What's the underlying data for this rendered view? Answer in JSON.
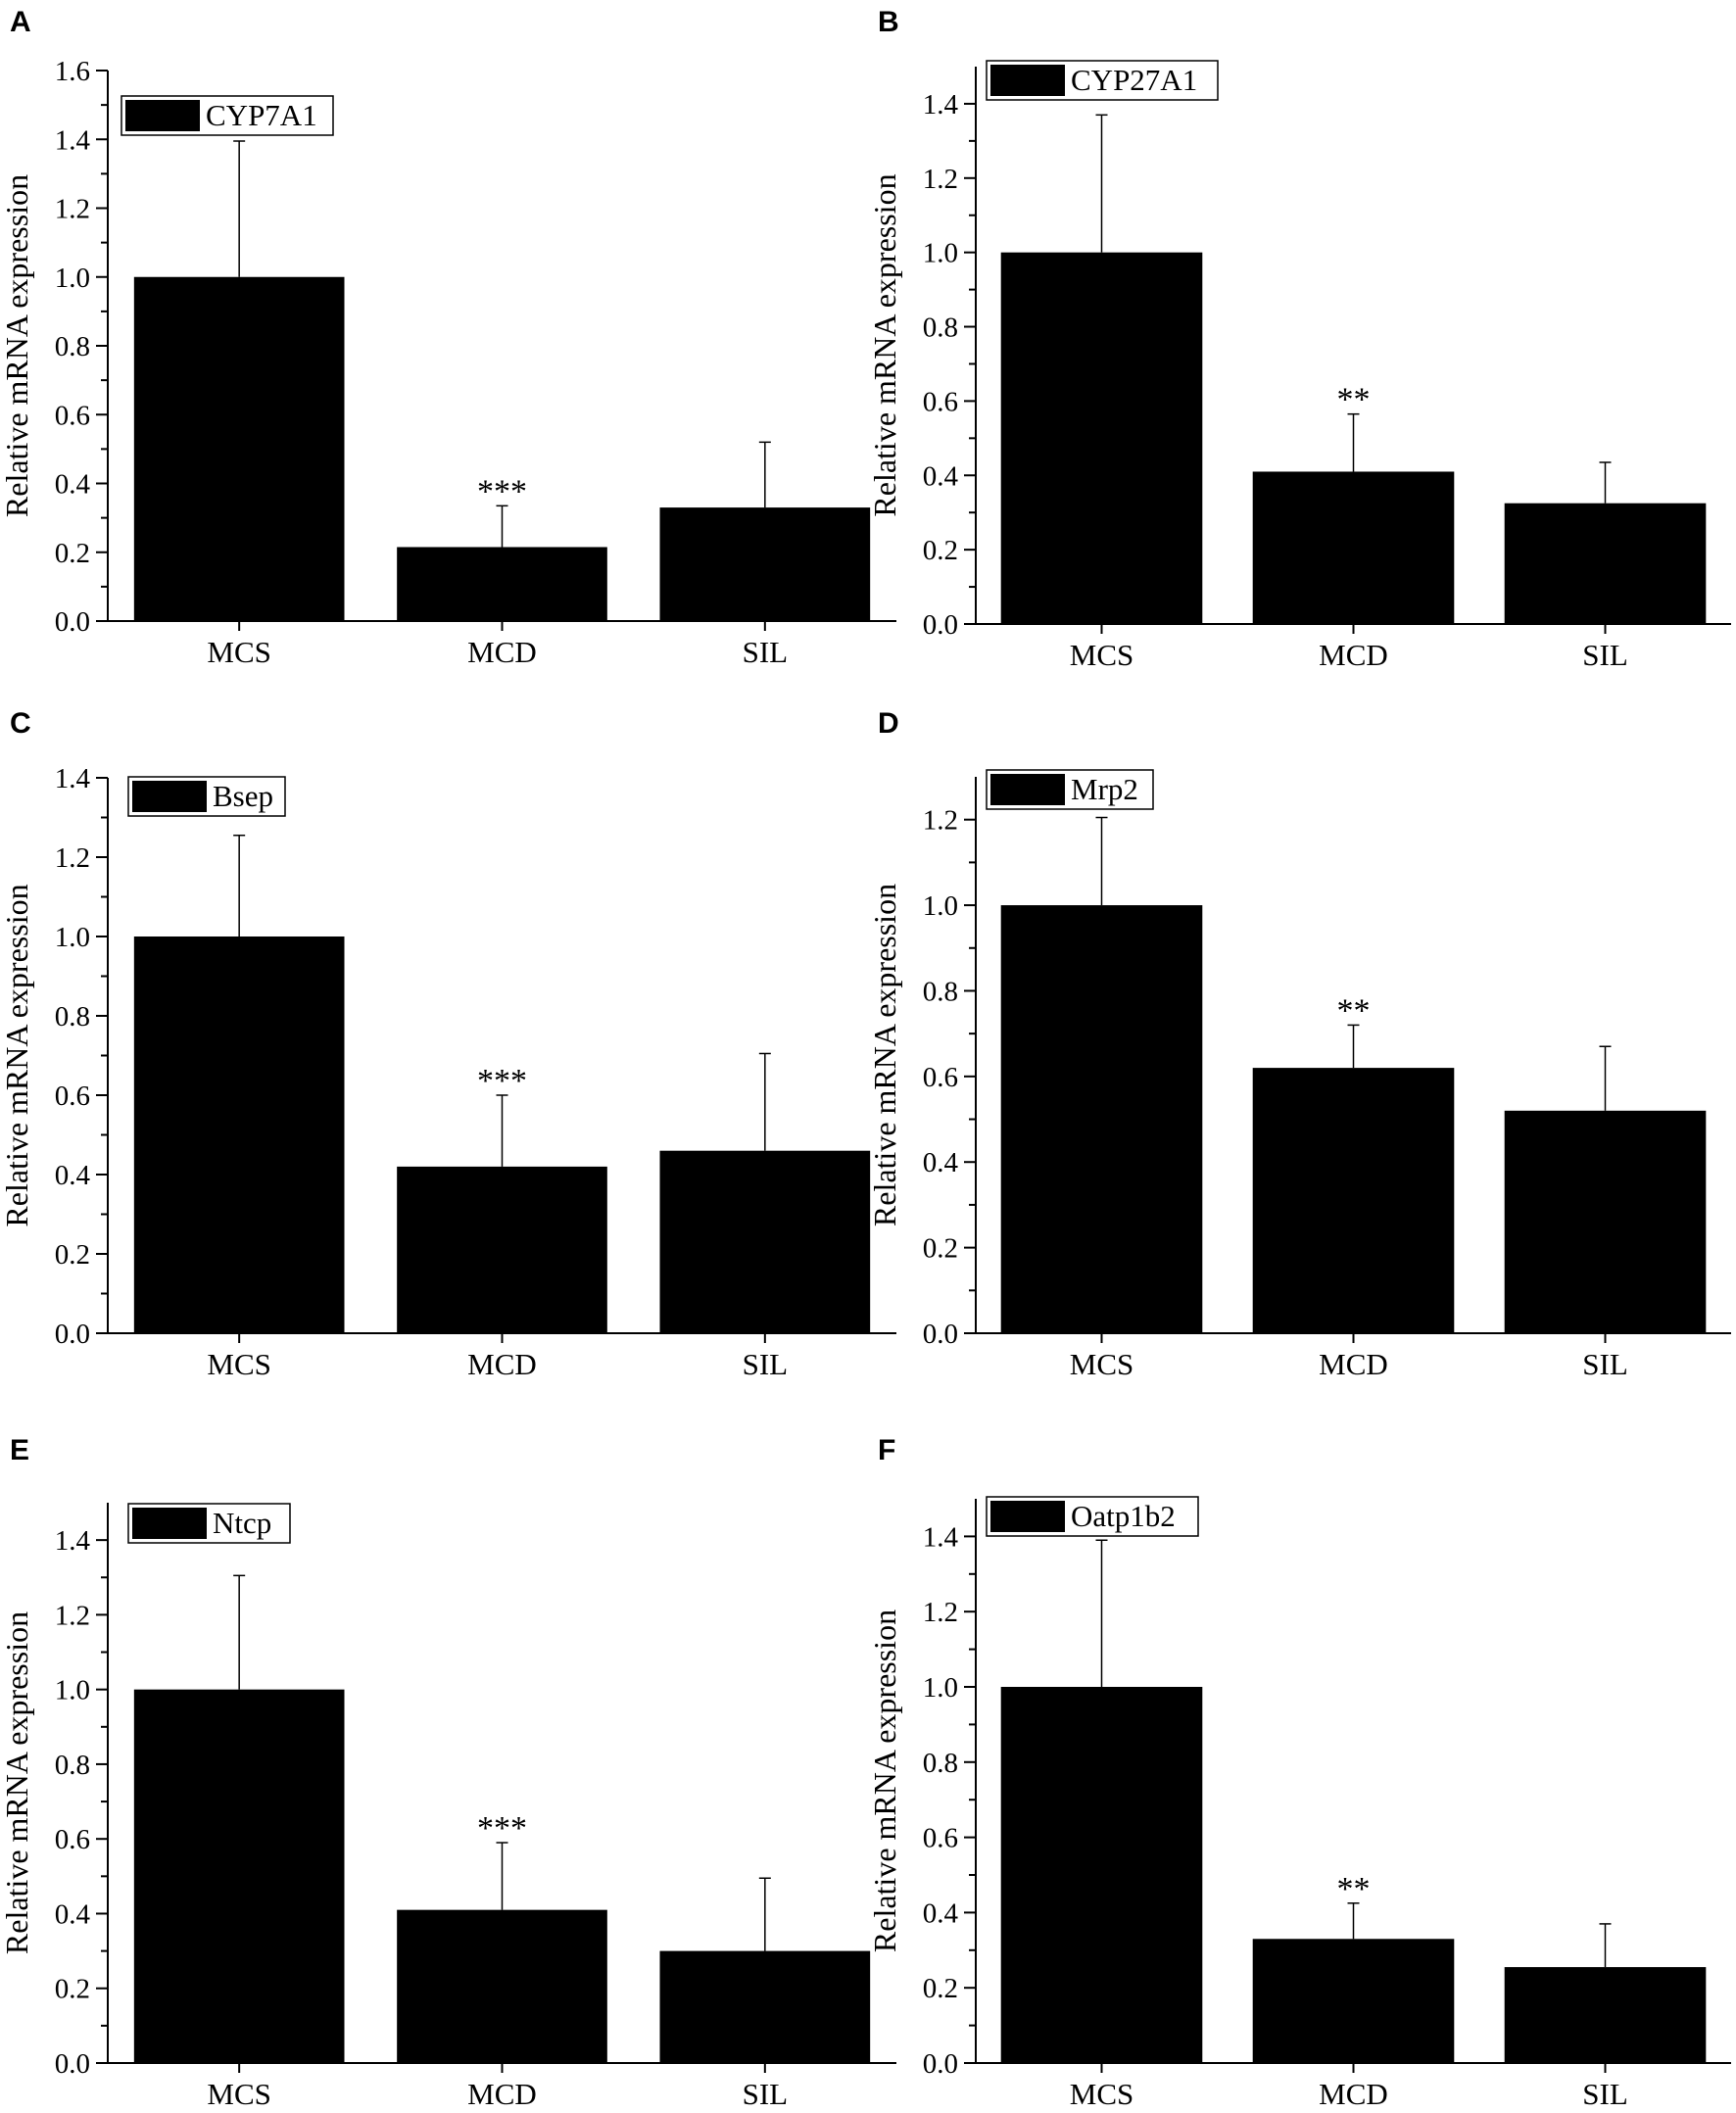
{
  "figure": {
    "panels": [
      "A",
      "B",
      "C",
      "D",
      "E",
      "F"
    ]
  },
  "chart_data": [
    {
      "panel": "A",
      "type": "bar",
      "legend": "CYP7A1",
      "legend_position": "top-left",
      "ylabel": "Relative mRNA expression",
      "xlabel": "",
      "categories": [
        "MCS",
        "MCD",
        "SIL"
      ],
      "values": [
        1.0,
        0.215,
        0.33
      ],
      "errors": [
        0.395,
        0.12,
        0.19
      ],
      "significance": [
        "",
        "***",
        ""
      ],
      "ylim": [
        0,
        1.6
      ],
      "yticks": [
        "0.0",
        "0.2",
        "0.4",
        "0.6",
        "0.8",
        "1.0",
        "1.2",
        "1.4",
        "1.6"
      ],
      "bar_color": "#000000",
      "grid": false
    },
    {
      "panel": "B",
      "type": "bar",
      "legend": "CYP27A1",
      "legend_position": "top-left",
      "ylabel": "Relative mRNA expression",
      "xlabel": "",
      "categories": [
        "MCS",
        "MCD",
        "SIL"
      ],
      "values": [
        1.0,
        0.41,
        0.325
      ],
      "errors": [
        0.37,
        0.155,
        0.11
      ],
      "significance": [
        "",
        "**",
        ""
      ],
      "ylim": [
        0,
        1.5
      ],
      "yticks": [
        "0.0",
        "0.2",
        "0.4",
        "0.6",
        "0.8",
        "1.0",
        "1.2",
        "1.4"
      ],
      "bar_color": "#000000",
      "grid": false
    },
    {
      "panel": "C",
      "type": "bar",
      "legend": "Bsep",
      "legend_position": "top-left",
      "ylabel": "Relative mRNA expression",
      "xlabel": "",
      "categories": [
        "MCS",
        "MCD",
        "SIL"
      ],
      "values": [
        1.0,
        0.42,
        0.46
      ],
      "errors": [
        0.255,
        0.18,
        0.245
      ],
      "significance": [
        "",
        "***",
        ""
      ],
      "ylim": [
        0,
        1.4
      ],
      "yticks": [
        "0.0",
        "0.2",
        "0.4",
        "0.6",
        "0.8",
        "1.0",
        "1.2",
        "1.4"
      ],
      "bar_color": "#000000",
      "grid": false
    },
    {
      "panel": "D",
      "type": "bar",
      "legend": "Mrp2",
      "legend_position": "top-left",
      "ylabel": "Relative mRNA expression",
      "xlabel": "",
      "categories": [
        "MCS",
        "MCD",
        "SIL"
      ],
      "values": [
        1.0,
        0.62,
        0.52
      ],
      "errors": [
        0.205,
        0.1,
        0.15
      ],
      "significance": [
        "",
        "**",
        ""
      ],
      "ylim": [
        0,
        1.3
      ],
      "yticks": [
        "0.0",
        "0.2",
        "0.4",
        "0.6",
        "0.8",
        "1.0",
        "1.2"
      ],
      "bar_color": "#000000",
      "grid": false
    },
    {
      "panel": "E",
      "type": "bar",
      "legend": "Ntcp",
      "legend_position": "top-left",
      "ylabel": "Relative mRNA expression",
      "xlabel": "",
      "categories": [
        "MCS",
        "MCD",
        "SIL"
      ],
      "values": [
        1.0,
        0.41,
        0.3
      ],
      "errors": [
        0.305,
        0.18,
        0.195
      ],
      "significance": [
        "",
        "***",
        ""
      ],
      "ylim": [
        0,
        1.5
      ],
      "yticks": [
        "0.0",
        "0.2",
        "0.4",
        "0.6",
        "0.8",
        "1.0",
        "1.2",
        "1.4"
      ],
      "bar_color": "#000000",
      "grid": false
    },
    {
      "panel": "F",
      "type": "bar",
      "legend": "Oatp1b2",
      "legend_position": "top-left",
      "ylabel": "Relative mRNA expression",
      "xlabel": "",
      "categories": [
        "MCS",
        "MCD",
        "SIL"
      ],
      "values": [
        1.0,
        0.33,
        0.255
      ],
      "errors": [
        0.39,
        0.095,
        0.115
      ],
      "significance": [
        "",
        "**",
        ""
      ],
      "ylim": [
        0,
        1.5
      ],
      "yticks": [
        "0.0",
        "0.2",
        "0.4",
        "0.6",
        "0.8",
        "1.0",
        "1.2",
        "1.4"
      ],
      "bar_color": "#000000",
      "grid": false
    }
  ]
}
